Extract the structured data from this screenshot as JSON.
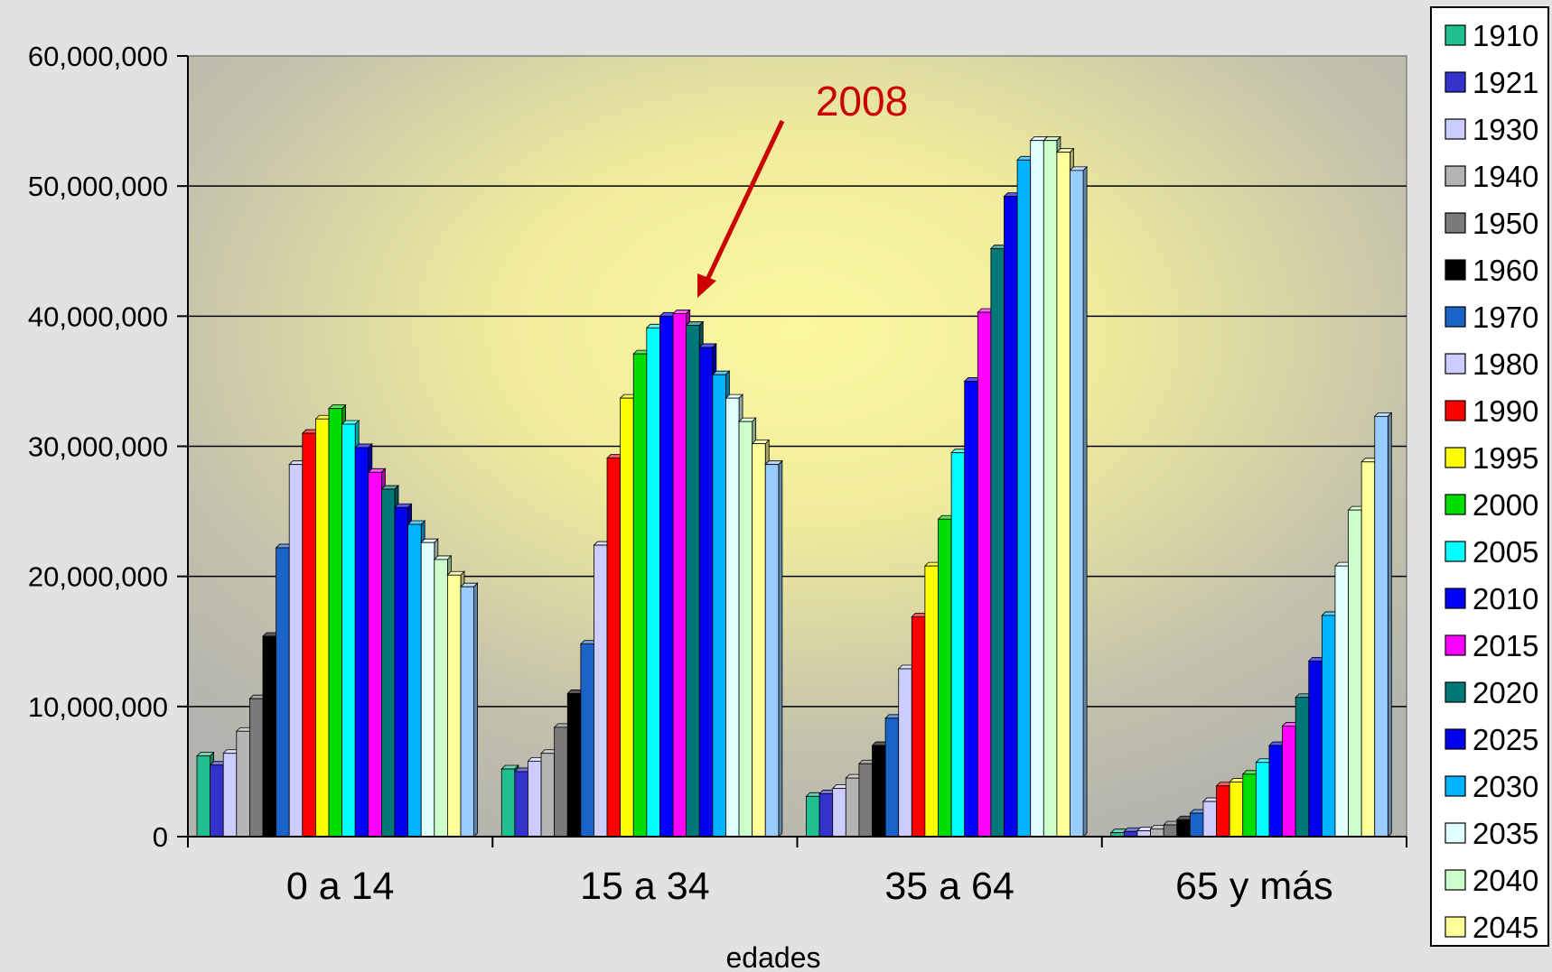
{
  "chart_data": {
    "type": "bar",
    "title": "",
    "xlabel": "edades",
    "ylabel": "",
    "ylim": [
      0,
      60000000
    ],
    "y_ticks": [
      "0",
      "10,000,000",
      "20,000,000",
      "30,000,000",
      "40,000,000",
      "50,000,000",
      "60,000,000"
    ],
    "y_tick_values": [
      0,
      10000000,
      20000000,
      30000000,
      40000000,
      50000000,
      60000000
    ],
    "grid": true,
    "legend_position": "right",
    "categories": [
      "0 a 14",
      "15 a 34",
      "35 a 64",
      "65 y más"
    ],
    "series": [
      {
        "name": "1910",
        "color": "#1fbf8f",
        "values": [
          6200000,
          5200000,
          3100000,
          300000
        ]
      },
      {
        "name": "1921",
        "color": "#3333cc",
        "values": [
          5500000,
          5000000,
          3300000,
          400000
        ]
      },
      {
        "name": "1930",
        "color": "#ccccff",
        "values": [
          6400000,
          5800000,
          3700000,
          450000
        ]
      },
      {
        "name": "1940",
        "color": "#b4b4b4",
        "values": [
          8100000,
          6400000,
          4500000,
          600000
        ]
      },
      {
        "name": "1950",
        "color": "#7a7a7a",
        "values": [
          10600000,
          8400000,
          5600000,
          900000
        ]
      },
      {
        "name": "1960",
        "color": "#000000",
        "values": [
          15400000,
          11000000,
          7000000,
          1300000
        ]
      },
      {
        "name": "1970",
        "color": "#1a64c8",
        "values": [
          22200000,
          14800000,
          9100000,
          1800000
        ]
      },
      {
        "name": "1980",
        "color": "#ccccff",
        "values": [
          28600000,
          22400000,
          12900000,
          2700000
        ]
      },
      {
        "name": "1990",
        "color": "#ff0000",
        "values": [
          31000000,
          29100000,
          16900000,
          3900000
        ]
      },
      {
        "name": "1995",
        "color": "#ffff00",
        "values": [
          32100000,
          33700000,
          20800000,
          4200000
        ]
      },
      {
        "name": "2000",
        "color": "#00dd00",
        "values": [
          32900000,
          37100000,
          24400000,
          4800000
        ]
      },
      {
        "name": "2005",
        "color": "#00ffff",
        "values": [
          31700000,
          39100000,
          29500000,
          5700000
        ]
      },
      {
        "name": "2010",
        "color": "#0000ff",
        "values": [
          29900000,
          40000000,
          35000000,
          7000000
        ]
      },
      {
        "name": "2015",
        "color": "#ff00ff",
        "values": [
          28000000,
          40200000,
          40300000,
          8500000
        ]
      },
      {
        "name": "2020",
        "color": "#007878",
        "values": [
          26700000,
          39300000,
          45200000,
          10700000
        ]
      },
      {
        "name": "2025",
        "color": "#0000ee",
        "values": [
          25300000,
          37600000,
          49200000,
          13500000
        ]
      },
      {
        "name": "2030",
        "color": "#00b4ff",
        "values": [
          24000000,
          35500000,
          52000000,
          17000000
        ]
      },
      {
        "name": "2035",
        "color": "#e0ffff",
        "values": [
          22600000,
          33700000,
          53500000,
          20800000
        ]
      },
      {
        "name": "2040",
        "color": "#ccffcc",
        "values": [
          21300000,
          31900000,
          53500000,
          25100000
        ]
      },
      {
        "name": "2045",
        "color": "#ffff99",
        "values": [
          20100000,
          30200000,
          52600000,
          28800000
        ]
      },
      {
        "name": "",
        "color": "#99ccff",
        "values": [
          19200000,
          28600000,
          51200000,
          32300000
        ]
      }
    ],
    "annotation": {
      "text": "2008",
      "color": "#cc0000"
    }
  }
}
